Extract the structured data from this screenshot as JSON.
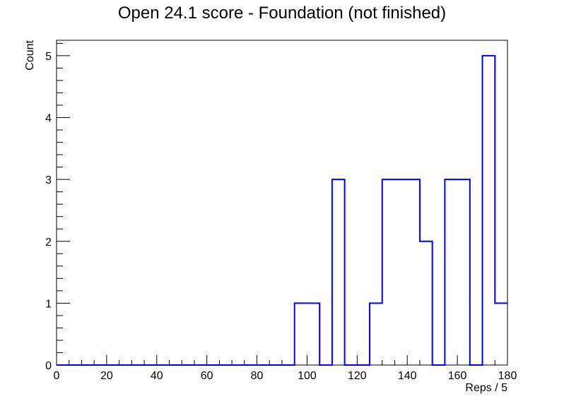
{
  "chart_data": {
    "type": "bar",
    "histogram": true,
    "title": "Open 24.1 score - Foundation (not finished)",
    "xlabel": "Reps / 5",
    "ylabel": "Count",
    "xlim": [
      0,
      180
    ],
    "ylim": [
      0,
      5.25
    ],
    "bin_width": 5,
    "bin_edges_start": 0,
    "values": [
      0,
      0,
      0,
      0,
      0,
      0,
      0,
      0,
      0,
      0,
      0,
      0,
      0,
      0,
      0,
      0,
      0,
      0,
      0,
      1,
      1,
      0,
      3,
      0,
      0,
      1,
      3,
      3,
      3,
      2,
      0,
      3,
      3,
      0,
      5,
      1
    ],
    "xticks": [
      0,
      20,
      40,
      60,
      80,
      100,
      120,
      140,
      160,
      180
    ],
    "xtick_labels": [
      "0",
      "20",
      "40",
      "60",
      "80",
      "100",
      "120",
      "140",
      "160",
      "180"
    ],
    "yticks": [
      0,
      1,
      2,
      3,
      4,
      5
    ],
    "ytick_labels": [
      "0",
      "1",
      "2",
      "3",
      "4",
      "5"
    ],
    "line_color": "#0000ff",
    "grid": false,
    "legend": "none"
  }
}
